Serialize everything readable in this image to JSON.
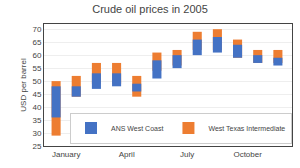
{
  "chart_data": {
    "type": "bar",
    "title": "Crude oil prices in 2005",
    "ylabel": "USD per barrel",
    "x": [
      1,
      2,
      3,
      4,
      5,
      6,
      7,
      8,
      9,
      10,
      11,
      12
    ],
    "xlim": [
      0.4,
      12.7
    ],
    "xticks": [
      {
        "value": 1.5,
        "label": "January"
      },
      {
        "value": 4.5,
        "label": "April"
      },
      {
        "value": 7.5,
        "label": "July"
      },
      {
        "value": 10.5,
        "label": "October"
      }
    ],
    "ylim": [
      25,
      72
    ],
    "yticks": [
      25,
      30,
      35,
      40,
      45,
      50,
      55,
      60,
      65,
      70
    ],
    "grid": true,
    "legend": "lower right",
    "series": [
      {
        "name": "West Texas Intermediate",
        "color": "#ED7D31",
        "values": [
          [
            29,
            50
          ],
          [
            44,
            52
          ],
          [
            49,
            57
          ],
          [
            49,
            57
          ],
          [
            44,
            52
          ],
          [
            54,
            61
          ],
          [
            56,
            62
          ],
          [
            62,
            69
          ],
          [
            62,
            70
          ],
          [
            59,
            66
          ],
          [
            57,
            62
          ],
          [
            57,
            62
          ]
        ]
      },
      {
        "name": "ANS West Coast",
        "color": "#4472C4",
        "values": [
          [
            36,
            48
          ],
          [
            44,
            48
          ],
          [
            47,
            53
          ],
          [
            48,
            53
          ],
          [
            46,
            49
          ],
          [
            51,
            58
          ],
          [
            55,
            60
          ],
          [
            60,
            66
          ],
          [
            61,
            67
          ],
          [
            59,
            64
          ],
          [
            57,
            60
          ],
          [
            56,
            59
          ]
        ]
      }
    ]
  }
}
